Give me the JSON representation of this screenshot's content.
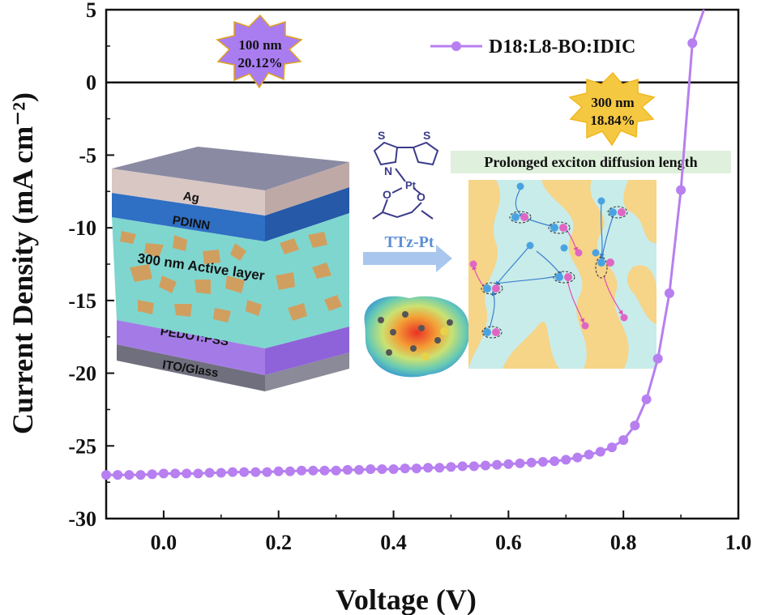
{
  "chart_data": {
    "type": "line",
    "xlabel": "Voltage (V)",
    "ylabel": "Current Density (mA cm⁻²)",
    "xlim": [
      -0.1,
      1.0
    ],
    "ylim": [
      -30,
      5
    ],
    "xticks": [
      "0.0",
      "0.2",
      "0.4",
      "0.6",
      "0.8",
      "1.0"
    ],
    "yticks": [
      "5",
      "0",
      "-5",
      "-10",
      "-15",
      "-20",
      "-25",
      "-30"
    ],
    "legend": {
      "placement": "top-right"
    },
    "series": [
      {
        "name": "D18:L8-BO:IDIC",
        "color": "#b77ff0",
        "x": [
          -0.1,
          -0.08,
          -0.06,
          -0.04,
          -0.02,
          0.0,
          0.02,
          0.04,
          0.06,
          0.08,
          0.1,
          0.12,
          0.14,
          0.16,
          0.18,
          0.2,
          0.22,
          0.24,
          0.26,
          0.28,
          0.3,
          0.32,
          0.34,
          0.36,
          0.38,
          0.4,
          0.42,
          0.44,
          0.46,
          0.48,
          0.5,
          0.52,
          0.54,
          0.56,
          0.58,
          0.6,
          0.62,
          0.64,
          0.66,
          0.68,
          0.7,
          0.72,
          0.74,
          0.76,
          0.78,
          0.8,
          0.82,
          0.84,
          0.86,
          0.88,
          0.9,
          0.92,
          0.94
        ],
        "y": [
          -27.0,
          -27.0,
          -27.0,
          -27.0,
          -26.95,
          -26.9,
          -26.9,
          -26.9,
          -26.9,
          -26.85,
          -26.85,
          -26.8,
          -26.8,
          -26.8,
          -26.8,
          -26.75,
          -26.75,
          -26.7,
          -26.7,
          -26.7,
          -26.7,
          -26.65,
          -26.65,
          -26.6,
          -26.6,
          -26.6,
          -26.55,
          -26.55,
          -26.5,
          -26.5,
          -26.45,
          -26.4,
          -26.4,
          -26.35,
          -26.3,
          -26.25,
          -26.2,
          -26.15,
          -26.1,
          -26.05,
          -25.95,
          -25.8,
          -25.6,
          -25.4,
          -25.1,
          -24.6,
          -23.6,
          -21.8,
          -19.0,
          -14.5,
          -7.4,
          2.7,
          5.0
        ]
      }
    ],
    "annotations": {
      "burst_100": {
        "line1": "100 nm",
        "line2": "20.12%",
        "color": "#a97cf0"
      },
      "burst_300": {
        "line1": "300 nm",
        "line2": "18.84%",
        "color": "#f5c842"
      }
    },
    "inset": {
      "layers": [
        "Ag",
        "PDINN",
        "300 nm Active layer",
        "PEDOT:PSS",
        "ITO/Glass"
      ],
      "molecule_label": "TTz-Pt",
      "molecule_atoms": [
        "S",
        "S",
        "N",
        "Pt",
        "O",
        "O"
      ],
      "diagram_title": "Prolonged exciton diffusion length",
      "charge_minus": "−",
      "charge_plus": "+"
    }
  }
}
